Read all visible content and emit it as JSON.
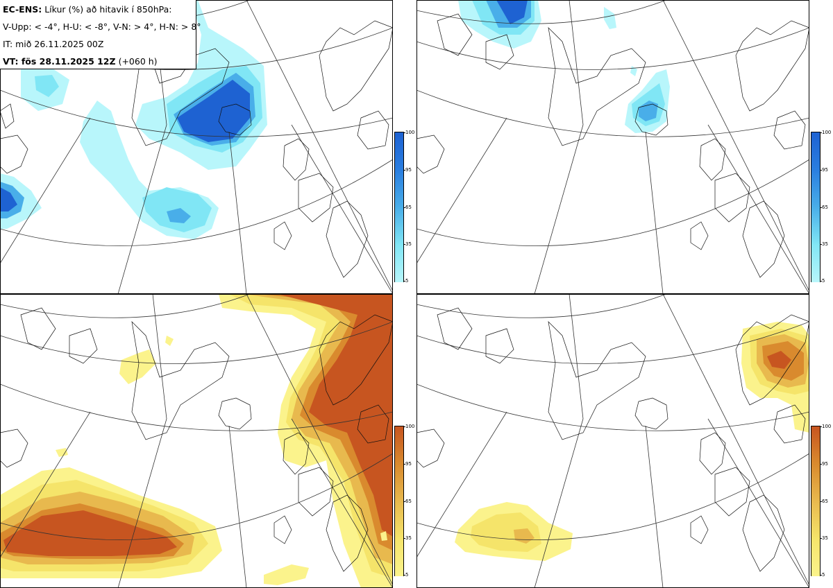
{
  "header": {
    "model": "EC-ENS:",
    "title": "Líkur (%) að hitavik í 850hPa:",
    "thresholds": "V-Upp: < -4°, H-U: < -8°, V-N: > 4°, H-N: > 8°",
    "init_time": "IT: mið 26.11.2025 00Z",
    "valid_label": "VT: fös 28.11.2025 12Z",
    "valid_lead": "(+060 h)"
  },
  "colorbars": {
    "ticks": [
      "100",
      "95",
      "65",
      "35",
      "5"
    ],
    "cold_colors": [
      "#1e62d2",
      "#2a7ee0",
      "#49aee9",
      "#80e6f5",
      "#b8f6fb"
    ],
    "warm_colors": [
      "#c75520",
      "#d98a2e",
      "#e8b94e",
      "#f5e46a",
      "#fbf38c"
    ]
  },
  "panels": [
    {
      "id": "V-Upp",
      "scale": "cold"
    },
    {
      "id": "H-U",
      "scale": "cold"
    },
    {
      "id": "V-N",
      "scale": "warm"
    },
    {
      "id": "H-N",
      "scale": "warm"
    }
  ]
}
